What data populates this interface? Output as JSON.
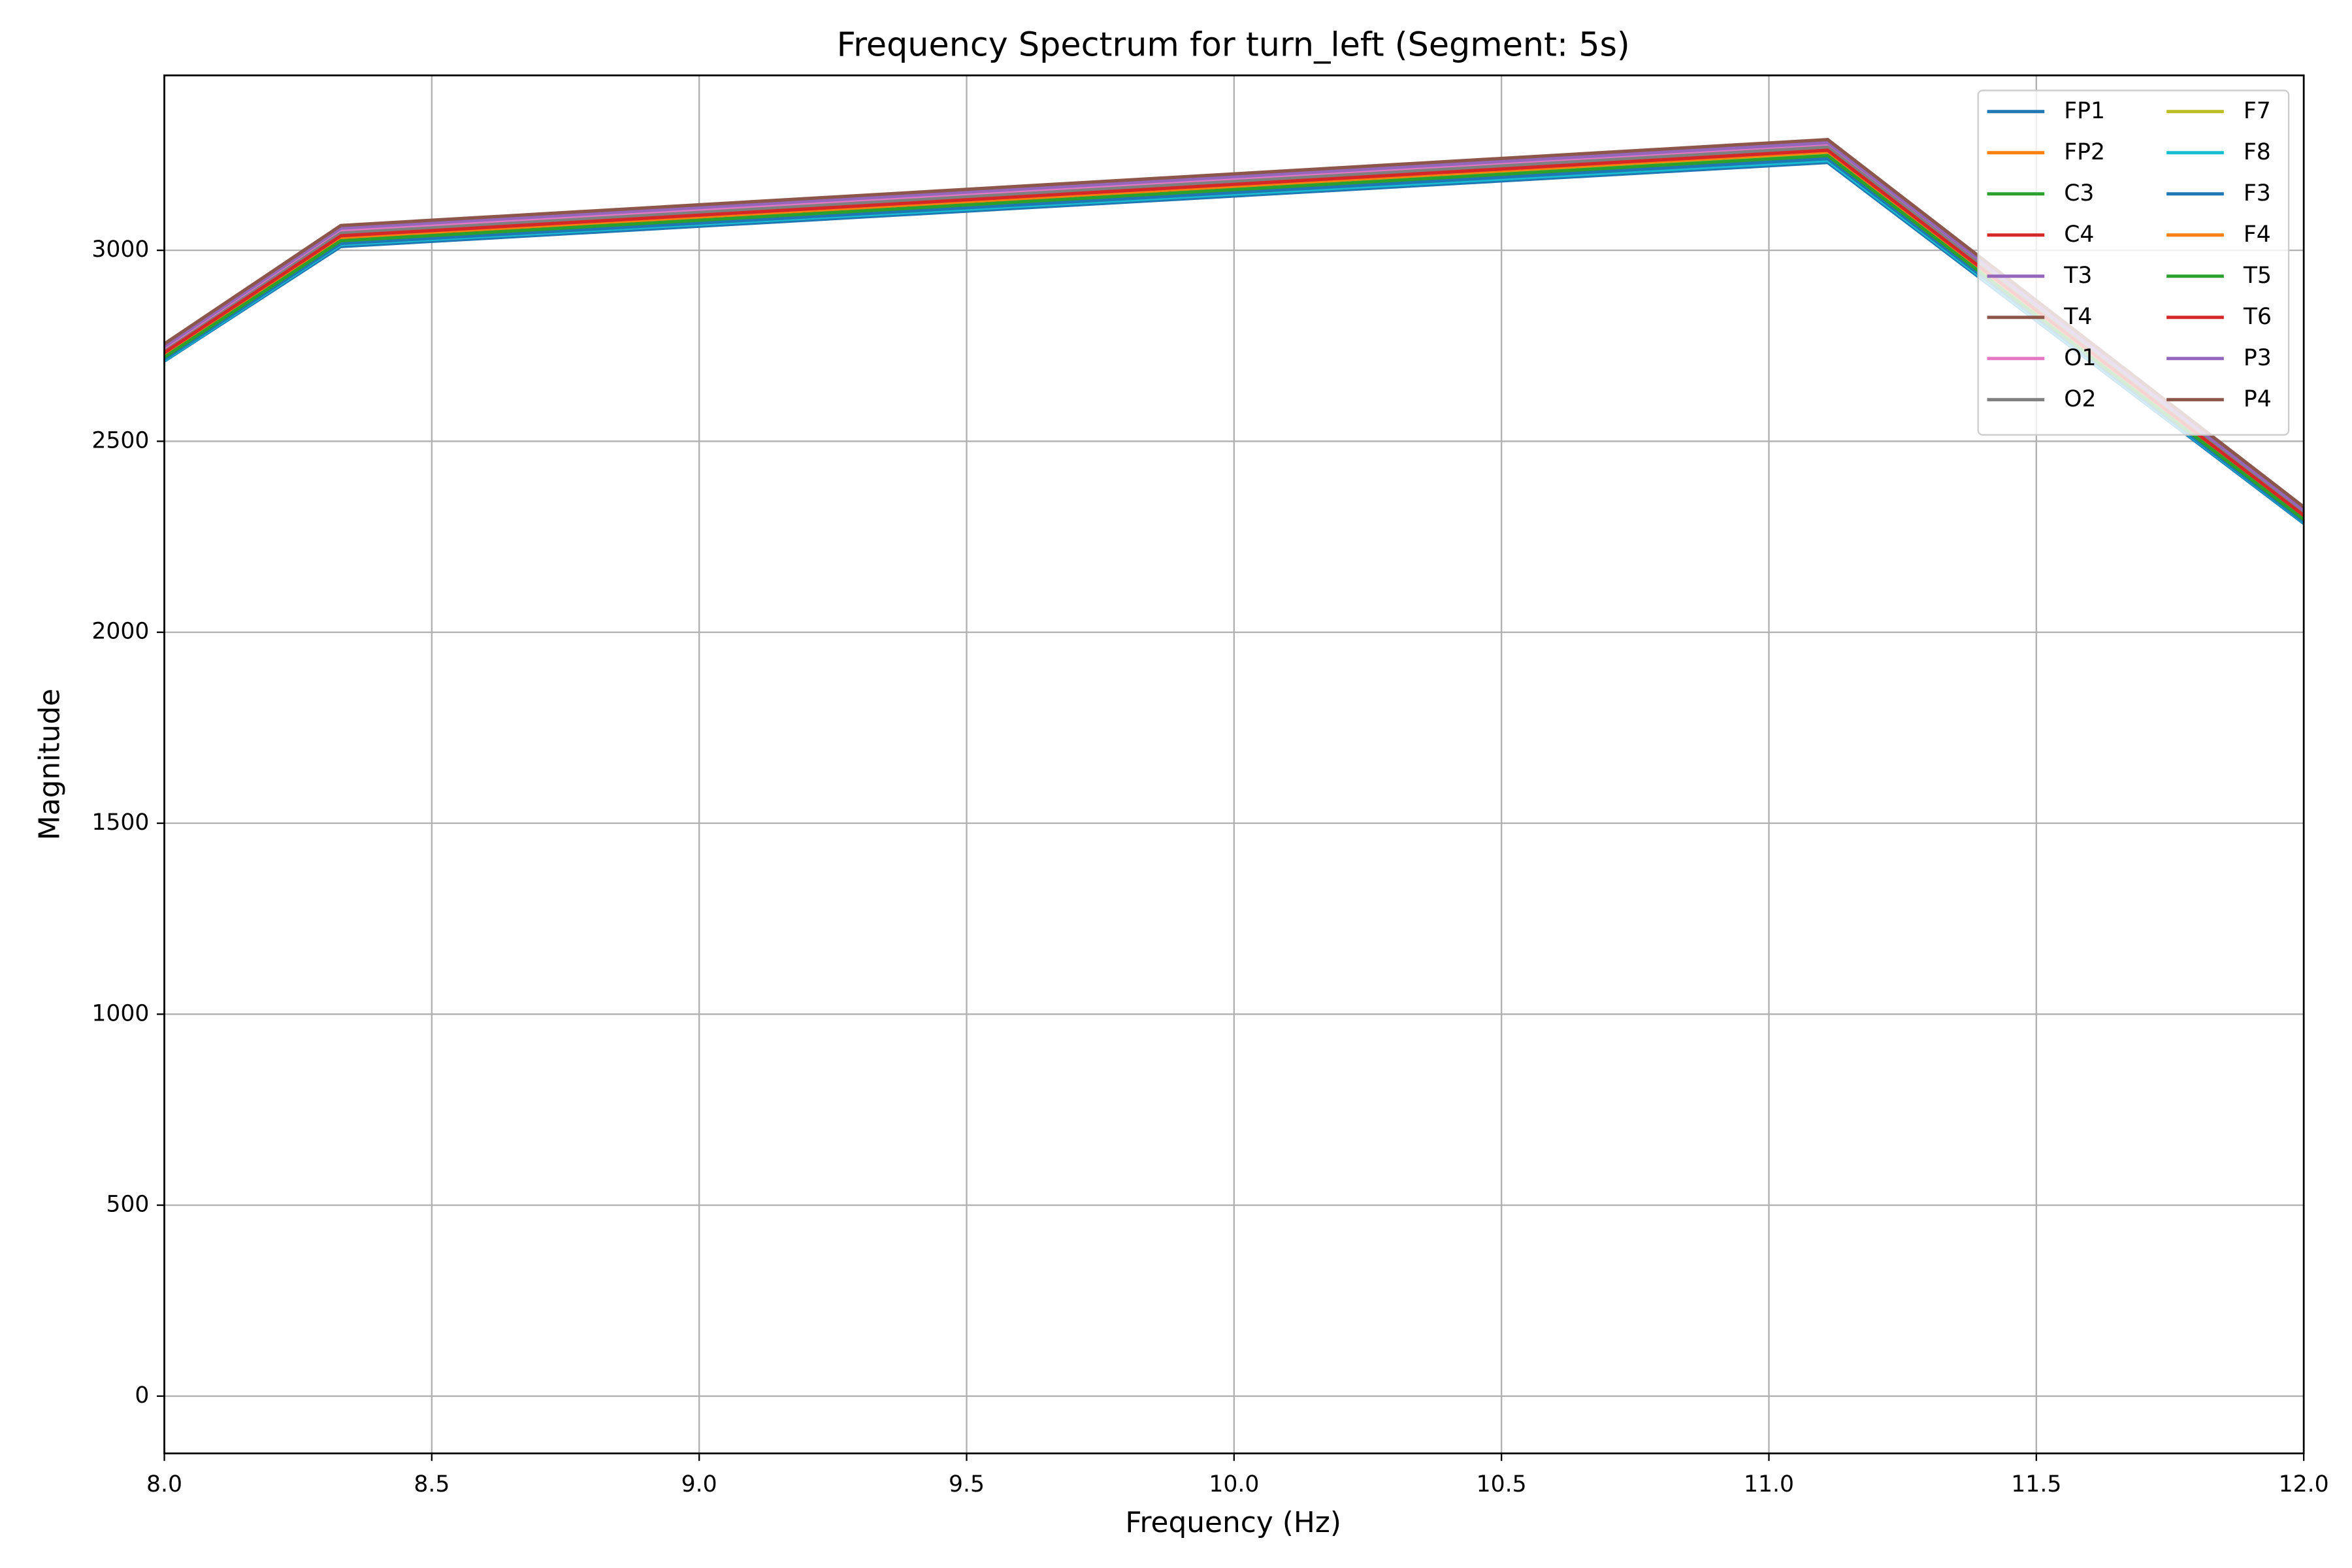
{
  "chart_data": {
    "type": "line",
    "title": "Frequency Spectrum for turn_left (Segment: 5s)",
    "x_label": "Frequency (Hz)",
    "y_label": "Magnitude",
    "x": [
      8.0,
      8.33,
      11.11,
      12.0
    ],
    "xlim": [
      8.0,
      12.0
    ],
    "xticks": [
      {
        "value": 8,
        "label": "8.0"
      },
      8.5,
      {
        "value": 9,
        "label": "9.0"
      },
      9.5,
      {
        "value": 10,
        "label": "10.0"
      },
      10.5,
      {
        "value": 11,
        "label": "11.0"
      },
      11.5,
      {
        "value": 12,
        "label": "12.0"
      }
    ],
    "ylim": [
      -150,
      3458
    ],
    "yticks": [
      0,
      500,
      1000,
      1500,
      2000,
      2500,
      3000
    ],
    "grid": true,
    "legend": "upper right",
    "series": [
      {
        "name": "FP1",
        "color": "#1f77b4",
        "values": [
          2710,
          3010,
          3230,
          2285
        ]
      },
      {
        "name": "FP2",
        "color": "#ff7f0e",
        "values": [
          2725,
          3030,
          3255,
          2300
        ]
      },
      {
        "name": "C3",
        "color": "#2ca02c",
        "values": [
          2718,
          3022,
          3245,
          2292
        ]
      },
      {
        "name": "C4",
        "color": "#d62728",
        "values": [
          2730,
          3035,
          3260,
          2305
        ]
      },
      {
        "name": "T3",
        "color": "#9467bd",
        "values": [
          2745,
          3055,
          3280,
          2318
        ]
      },
      {
        "name": "T4",
        "color": "#8c564b",
        "values": [
          2750,
          3060,
          3285,
          2322
        ]
      },
      {
        "name": "O1",
        "color": "#e377c2",
        "values": [
          2740,
          3050,
          3275,
          2315
        ]
      },
      {
        "name": "O2",
        "color": "#7f7f7f",
        "values": [
          2735,
          3045,
          3270,
          2310
        ]
      },
      {
        "name": "F7",
        "color": "#bcbd22",
        "values": [
          2722,
          3028,
          3250,
          2298
        ]
      },
      {
        "name": "F8",
        "color": "#17becf",
        "values": [
          2712,
          3015,
          3235,
          2288
        ]
      },
      {
        "name": "F3",
        "color": "#1f77b4",
        "values": [
          2715,
          3018,
          3240,
          2290
        ]
      },
      {
        "name": "F4",
        "color": "#ff7f0e",
        "values": [
          2728,
          3032,
          3258,
          2302
        ]
      },
      {
        "name": "T5",
        "color": "#2ca02c",
        "values": [
          2720,
          3025,
          3248,
          2295
        ]
      },
      {
        "name": "T6",
        "color": "#d62728",
        "values": [
          2732,
          3038,
          3262,
          2306
        ]
      },
      {
        "name": "P3",
        "color": "#9467bd",
        "values": [
          2748,
          3058,
          3282,
          2320
        ]
      },
      {
        "name": "P4",
        "color": "#8c564b",
        "values": [
          2755,
          3065,
          3290,
          2328
        ]
      }
    ]
  }
}
